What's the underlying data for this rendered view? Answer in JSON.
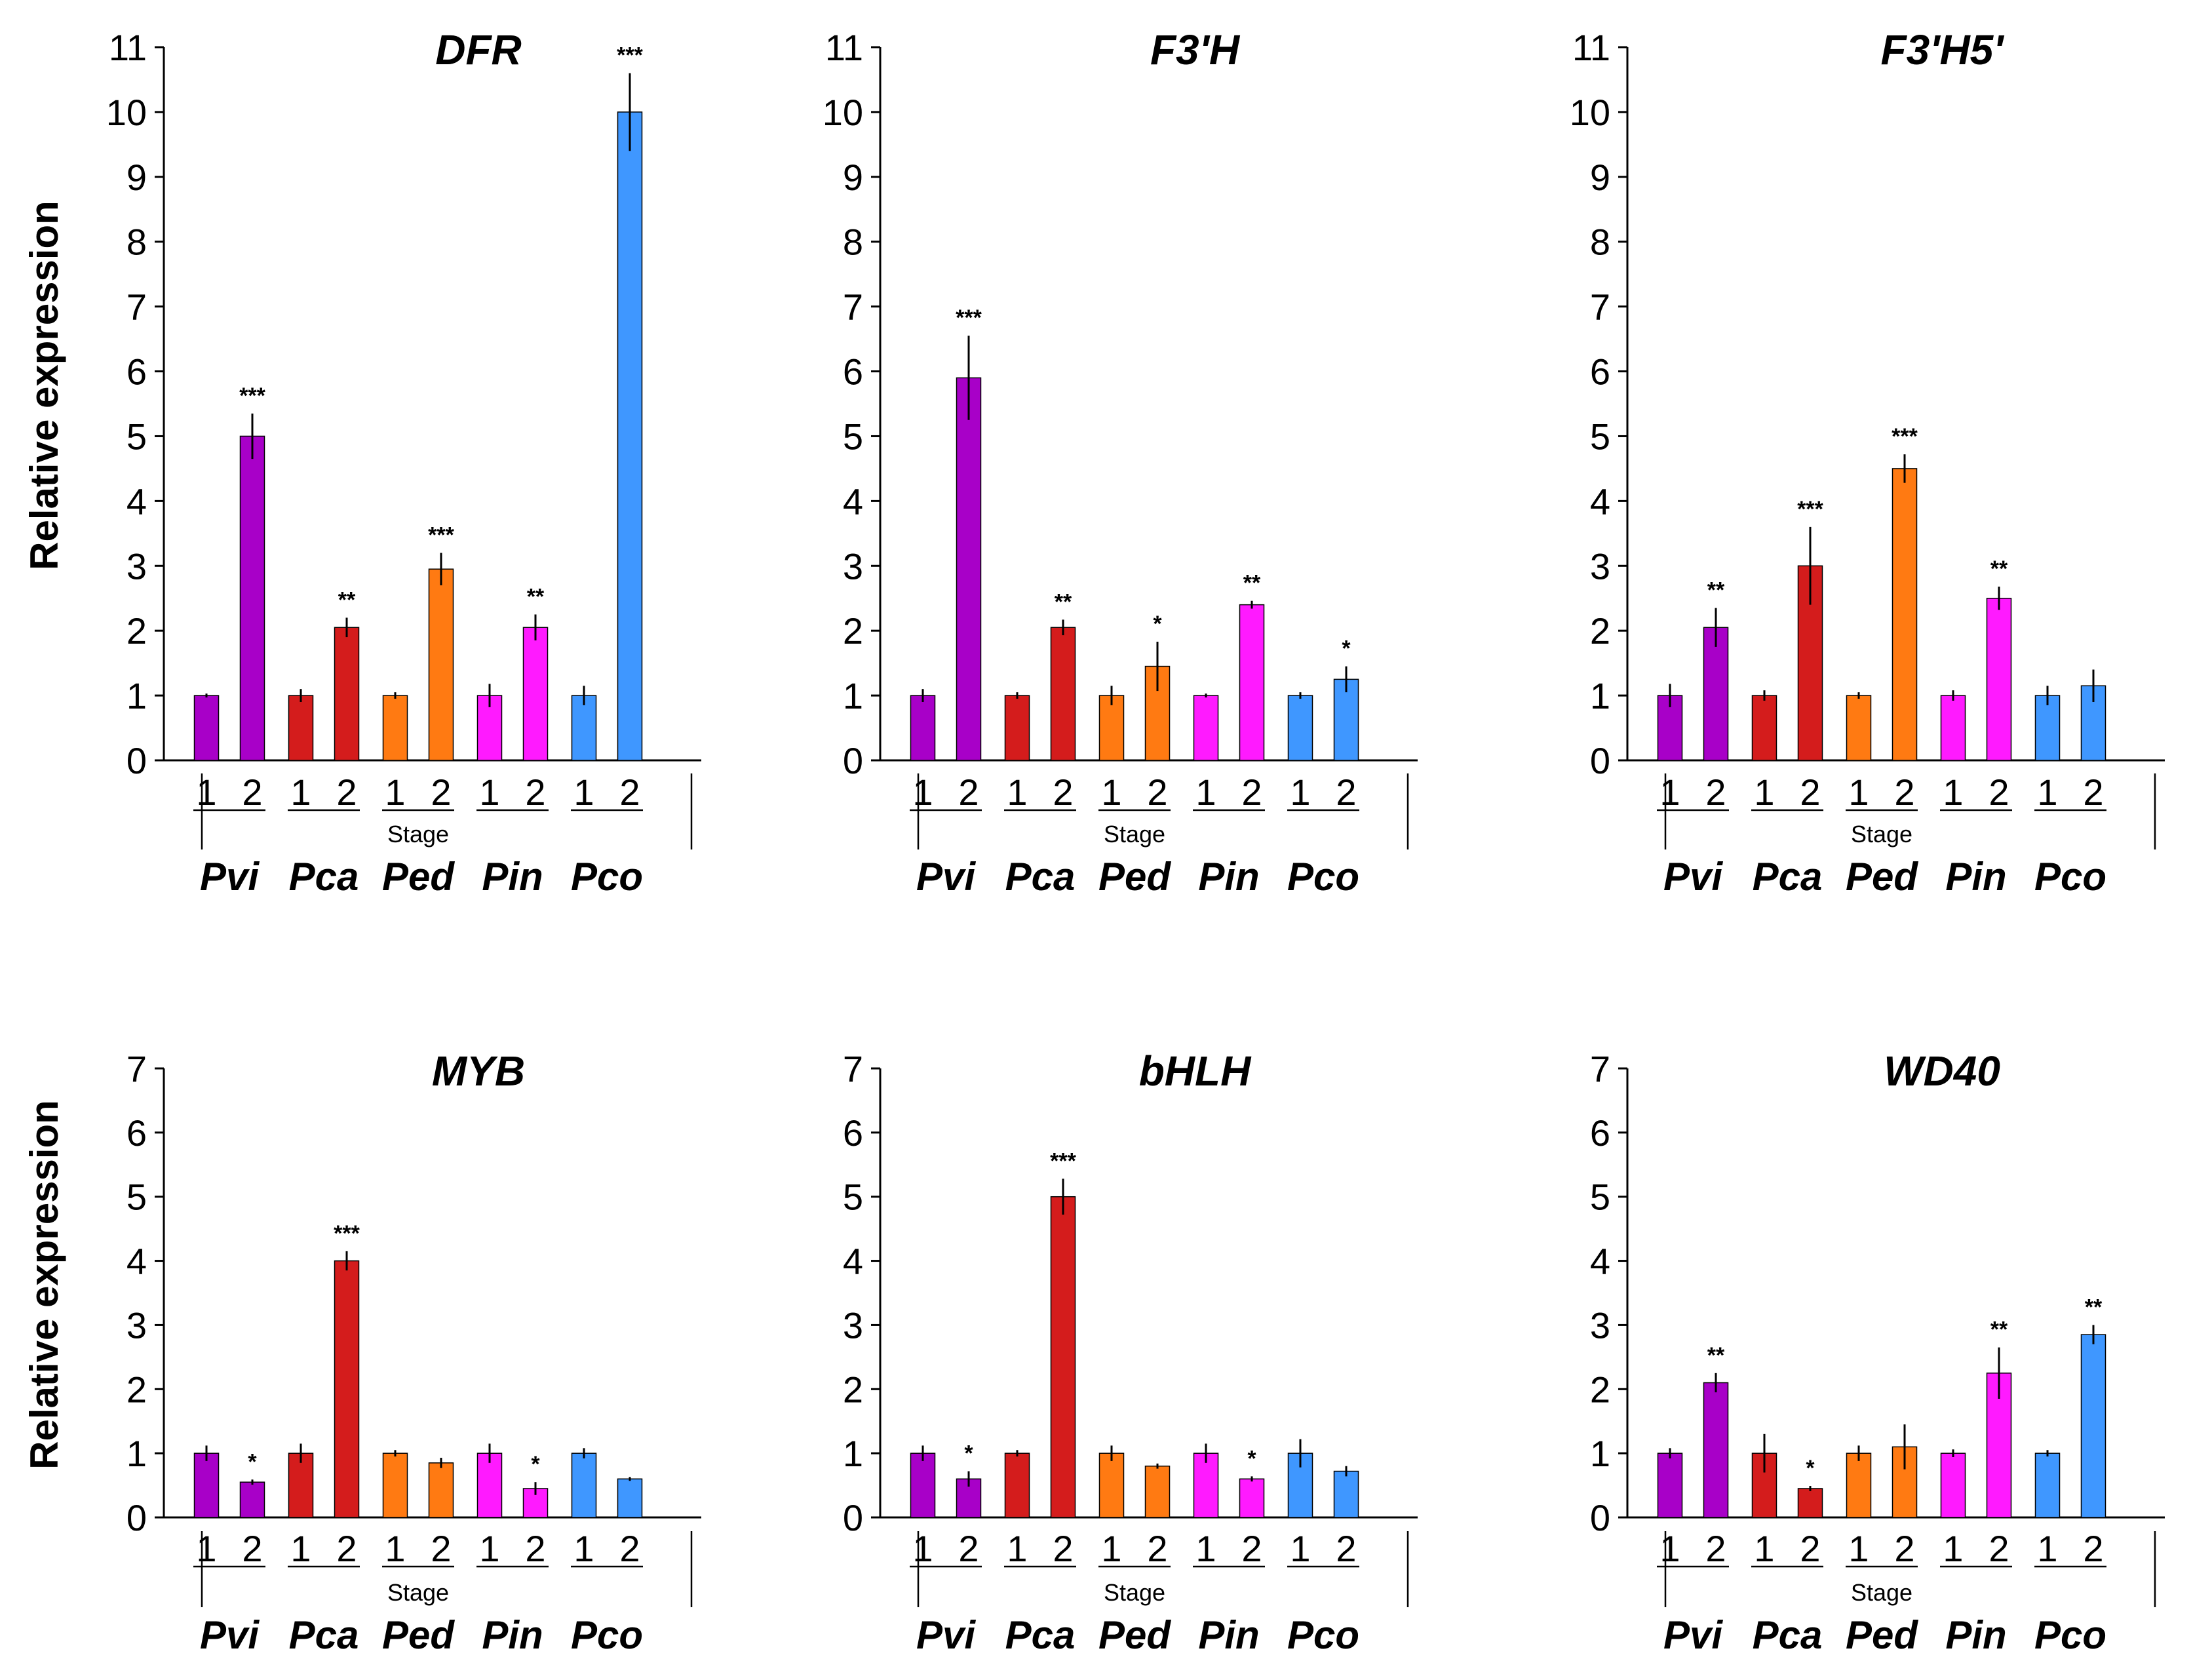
{
  "figure": {
    "ylabel": "Relative expression",
    "stage_label": "Stage",
    "stage_numbers": [
      "1",
      "2"
    ],
    "species": [
      "Pvi",
      "Pca",
      "Ped",
      "Pin",
      "Pco"
    ],
    "colors": [
      "#a800c8",
      "#d41c1c",
      "#ff7a12",
      "#ff1aff",
      "#3f97ff"
    ]
  },
  "chart_data": [
    {
      "type": "bar",
      "title": "DFR",
      "ylabel": "Relative expression",
      "xlabel": "Stage",
      "categories": [
        "Pvi",
        "Pca",
        "Ped",
        "Pin",
        "Pco"
      ],
      "ylim": [
        0,
        11
      ],
      "yticks": [
        0,
        1,
        2,
        3,
        4,
        5,
        6,
        7,
        8,
        9,
        10,
        11
      ],
      "series": [
        {
          "name": "Stage 1",
          "values": [
            1.0,
            1.0,
            1.0,
            1.0,
            1.0
          ],
          "errors": [
            0.03,
            0.1,
            0.05,
            0.18,
            0.15
          ],
          "sig": [
            "",
            "",
            "",
            "",
            ""
          ]
        },
        {
          "name": "Stage 2",
          "values": [
            5.0,
            2.05,
            2.95,
            2.05,
            10.0
          ],
          "errors": [
            0.35,
            0.15,
            0.25,
            0.2,
            0.6
          ],
          "sig": [
            "***",
            "**",
            "***",
            "**",
            "***"
          ]
        }
      ]
    },
    {
      "type": "bar",
      "title": "F3'H",
      "xlabel": "Stage",
      "categories": [
        "Pvi",
        "Pca",
        "Ped",
        "Pin",
        "Pco"
      ],
      "ylim": [
        0,
        11
      ],
      "yticks": [
        0,
        1,
        2,
        3,
        4,
        5,
        6,
        7,
        8,
        9,
        10,
        11
      ],
      "series": [
        {
          "name": "Stage 1",
          "values": [
            1.0,
            1.0,
            1.0,
            1.0,
            1.0
          ],
          "errors": [
            0.1,
            0.05,
            0.15,
            0.03,
            0.05
          ],
          "sig": [
            "",
            "",
            "",
            "",
            ""
          ]
        },
        {
          "name": "Stage 2",
          "values": [
            5.9,
            2.05,
            1.45,
            2.4,
            1.25
          ],
          "errors": [
            0.65,
            0.12,
            0.38,
            0.06,
            0.2
          ],
          "sig": [
            "***",
            "**",
            "*",
            "**",
            "*"
          ]
        }
      ]
    },
    {
      "type": "bar",
      "title": "F3'H5'",
      "xlabel": "Stage",
      "categories": [
        "Pvi",
        "Pca",
        "Ped",
        "Pin",
        "Pco"
      ],
      "ylim": [
        0,
        11
      ],
      "yticks": [
        0,
        1,
        2,
        3,
        4,
        5,
        6,
        7,
        8,
        9,
        10,
        11
      ],
      "series": [
        {
          "name": "Stage 1",
          "values": [
            1.0,
            1.0,
            1.0,
            1.0,
            1.0
          ],
          "errors": [
            0.18,
            0.08,
            0.05,
            0.08,
            0.15
          ],
          "sig": [
            "",
            "",
            "",
            "",
            ""
          ]
        },
        {
          "name": "Stage 2",
          "values": [
            2.05,
            3.0,
            4.5,
            2.5,
            1.15
          ],
          "errors": [
            0.3,
            0.6,
            0.22,
            0.18,
            0.25
          ],
          "sig": [
            "**",
            "***",
            "***",
            "**",
            ""
          ]
        }
      ]
    },
    {
      "type": "bar",
      "title": "MYB",
      "ylabel": "Relative expression",
      "xlabel": "Stage",
      "categories": [
        "Pvi",
        "Pca",
        "Ped",
        "Pin",
        "Pco"
      ],
      "ylim": [
        0,
        7
      ],
      "yticks": [
        0,
        1,
        2,
        3,
        4,
        5,
        6,
        7
      ],
      "series": [
        {
          "name": "Stage 1",
          "values": [
            1.0,
            1.0,
            1.0,
            1.0,
            1.0
          ],
          "errors": [
            0.12,
            0.15,
            0.05,
            0.15,
            0.08
          ],
          "sig": [
            "",
            "",
            "",
            "",
            ""
          ]
        },
        {
          "name": "Stage 2",
          "values": [
            0.55,
            4.0,
            0.85,
            0.45,
            0.6
          ],
          "errors": [
            0.04,
            0.15,
            0.08,
            0.1,
            0.03
          ],
          "sig": [
            "*",
            "***",
            "",
            "*",
            ""
          ]
        }
      ]
    },
    {
      "type": "bar",
      "title": "bHLH",
      "xlabel": "Stage",
      "categories": [
        "Pvi",
        "Pca",
        "Ped",
        "Pin",
        "Pco"
      ],
      "ylim": [
        0,
        7
      ],
      "yticks": [
        0,
        1,
        2,
        3,
        4,
        5,
        6,
        7
      ],
      "series": [
        {
          "name": "Stage 1",
          "values": [
            1.0,
            1.0,
            1.0,
            1.0,
            1.0
          ],
          "errors": [
            0.12,
            0.05,
            0.12,
            0.15,
            0.22
          ],
          "sig": [
            "",
            "",
            "",
            "",
            ""
          ]
        },
        {
          "name": "Stage 2",
          "values": [
            0.6,
            5.0,
            0.8,
            0.6,
            0.72
          ],
          "errors": [
            0.12,
            0.28,
            0.04,
            0.04,
            0.08
          ],
          "sig": [
            "*",
            "***",
            "",
            "*",
            ""
          ]
        }
      ]
    },
    {
      "type": "bar",
      "title": "WD40",
      "xlabel": "Stage",
      "categories": [
        "Pvi",
        "Pca",
        "Ped",
        "Pin",
        "Pco"
      ],
      "ylim": [
        0,
        7
      ],
      "yticks": [
        0,
        1,
        2,
        3,
        4,
        5,
        6,
        7
      ],
      "series": [
        {
          "name": "Stage 1",
          "values": [
            1.0,
            1.0,
            1.0,
            1.0,
            1.0
          ],
          "errors": [
            0.08,
            0.3,
            0.12,
            0.06,
            0.05
          ],
          "sig": [
            "",
            "",
            "",
            "",
            ""
          ]
        },
        {
          "name": "Stage 2",
          "values": [
            2.1,
            0.45,
            1.1,
            2.25,
            2.85
          ],
          "errors": [
            0.15,
            0.04,
            0.35,
            0.4,
            0.15
          ],
          "sig": [
            "**",
            "*",
            "",
            "**",
            "**"
          ]
        }
      ]
    }
  ]
}
